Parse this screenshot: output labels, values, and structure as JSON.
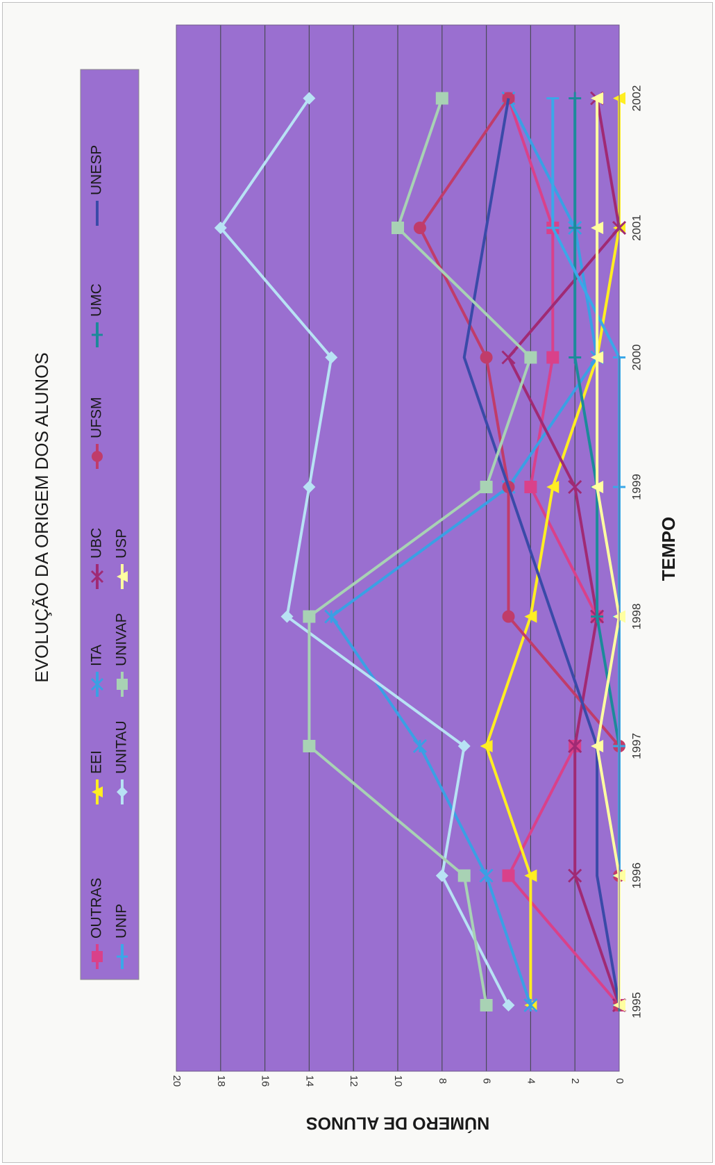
{
  "chart_data": {
    "type": "line",
    "title": "EVOLUÇÃO DA ORIGEM DOS ALUNOS",
    "xlabel": "TEMPO",
    "ylabel": "NÚMERO DE ALUNOS",
    "categories": [
      "1995",
      "1996",
      "1997",
      "1998",
      "1999",
      "2000",
      "2001",
      "2002"
    ],
    "ylim": [
      0,
      20
    ],
    "yticks": [
      "0",
      "2",
      "4",
      "6",
      "8",
      "10",
      "12",
      "14",
      "16",
      "18",
      "20"
    ],
    "grid": true,
    "legend_position": "top",
    "orientation": "rotated 90° clockwise (time axis runs top to bottom on the page)",
    "plot_background": "#9a6fd0",
    "series": [
      {
        "name": "OUTRAS",
        "color": "#d9418a",
        "marker": "square",
        "values": [
          0,
          5,
          2,
          1,
          4,
          3,
          3,
          5
        ]
      },
      {
        "name": "EEI",
        "color": "#ffee22",
        "marker": "triangle",
        "values": [
          4,
          4,
          6,
          4,
          3,
          1,
          0,
          0
        ]
      },
      {
        "name": "ITA",
        "color": "#3aa0e4",
        "marker": "star",
        "values": [
          4,
          6,
          9,
          13,
          5,
          1,
          2,
          5
        ]
      },
      {
        "name": "UBC",
        "color": "#a02a74",
        "marker": "x",
        "values": [
          0,
          2,
          2,
          1,
          2,
          5,
          0,
          1
        ]
      },
      {
        "name": "UFSM",
        "color": "#c03c6a",
        "marker": "circle",
        "values": [
          0,
          0,
          0,
          5,
          5,
          6,
          9,
          5
        ]
      },
      {
        "name": "UMC",
        "color": "#1c8a9a",
        "marker": "plus",
        "values": [
          0,
          0,
          0,
          1,
          1,
          2,
          2,
          2
        ]
      },
      {
        "name": "UNESP",
        "color": "#3a4aa8",
        "marker": "none",
        "values": [
          0,
          1,
          1,
          3,
          5,
          7,
          6,
          5
        ]
      },
      {
        "name": "UNIP",
        "color": "#3aa8e8",
        "marker": "dash",
        "values": [
          0,
          0,
          0,
          0,
          0,
          0,
          3,
          3
        ]
      },
      {
        "name": "UNITAU",
        "color": "#b8e2f4",
        "marker": "diamond",
        "values": [
          5,
          8,
          7,
          15,
          14,
          13,
          18,
          14
        ]
      },
      {
        "name": "UNIVAP",
        "color": "#a8d2b4",
        "marker": "square",
        "values": [
          6,
          7,
          14,
          14,
          6,
          4,
          10,
          8
        ]
      },
      {
        "name": "USP",
        "color": "#ffffa0",
        "marker": "triangle",
        "values": [
          0,
          0,
          1,
          0,
          1,
          1,
          1,
          1
        ]
      }
    ]
  }
}
